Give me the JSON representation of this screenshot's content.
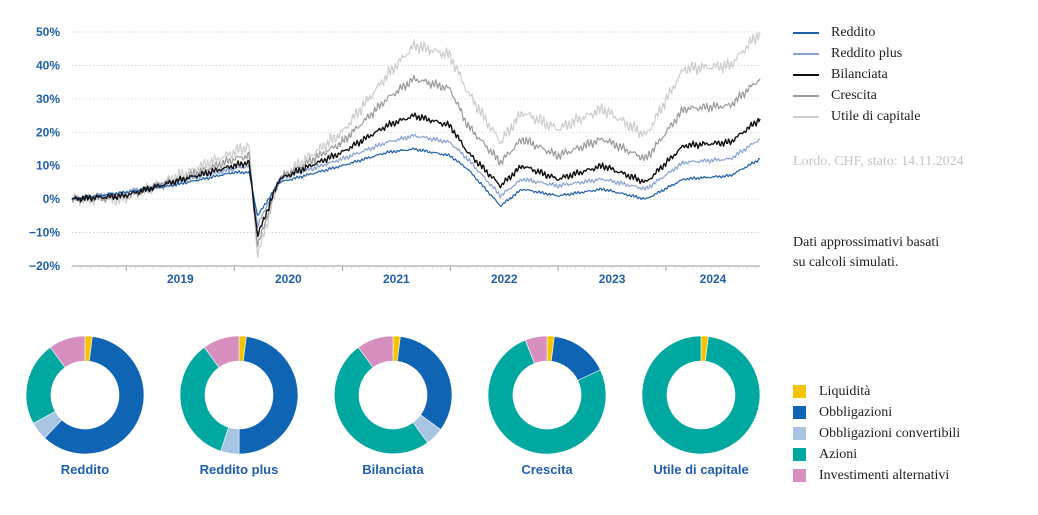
{
  "chart_data": [
    {
      "type": "line",
      "title": "",
      "xlabel": "",
      "ylabel": "",
      "ylim": [
        -20,
        50
      ],
      "yticks": [
        "50%",
        "40%",
        "30%",
        "20%",
        "10%",
        "0%",
        "−10%",
        "−20%"
      ],
      "ytick_values": [
        50,
        40,
        30,
        20,
        10,
        0,
        -10,
        -20
      ],
      "x_start": "2018-07-01",
      "x_end": "2024-11-14",
      "xticks": [
        "2019",
        "2020",
        "2021",
        "2022",
        "2023",
        "2024"
      ],
      "grid": true,
      "legend_position": "right",
      "series": [
        {
          "name": "Reddito",
          "color": "#1f5fa8",
          "points": [
            [
              "2018-07-01",
              0
            ],
            [
              "2018-12-24",
              2
            ],
            [
              "2019-06-01",
              4
            ],
            [
              "2019-12-31",
              8
            ],
            [
              "2020-02-20",
              8
            ],
            [
              "2020-03-20",
              -5
            ],
            [
              "2020-06-01",
              5
            ],
            [
              "2020-12-31",
              10
            ],
            [
              "2021-06-01",
              14
            ],
            [
              "2021-09-01",
              15
            ],
            [
              "2021-12-31",
              13
            ],
            [
              "2022-03-01",
              9
            ],
            [
              "2022-06-20",
              -2
            ],
            [
              "2022-09-01",
              3
            ],
            [
              "2022-12-31",
              1
            ],
            [
              "2023-06-01",
              3
            ],
            [
              "2023-10-25",
              0
            ],
            [
              "2024-03-01",
              6
            ],
            [
              "2024-08-05",
              7
            ],
            [
              "2024-11-14",
              12
            ]
          ]
        },
        {
          "name": "Reddito plus",
          "color": "#8aa2d2",
          "points": [
            [
              "2018-07-01",
              0
            ],
            [
              "2018-12-24",
              2
            ],
            [
              "2019-06-01",
              5
            ],
            [
              "2019-12-31",
              9
            ],
            [
              "2020-02-20",
              10
            ],
            [
              "2020-03-20",
              -8
            ],
            [
              "2020-06-01",
              6
            ],
            [
              "2020-12-31",
              12
            ],
            [
              "2021-06-01",
              17
            ],
            [
              "2021-09-01",
              19
            ],
            [
              "2021-12-31",
              17
            ],
            [
              "2022-03-01",
              12
            ],
            [
              "2022-06-20",
              1
            ],
            [
              "2022-09-01",
              6
            ],
            [
              "2022-12-31",
              4
            ],
            [
              "2023-06-01",
              6
            ],
            [
              "2023-10-25",
              3
            ],
            [
              "2024-03-01",
              11
            ],
            [
              "2024-08-05",
              12
            ],
            [
              "2024-11-14",
              18
            ]
          ]
        },
        {
          "name": "Bilanciata",
          "color": "#111111",
          "points": [
            [
              "2018-07-01",
              0
            ],
            [
              "2018-12-24",
              1
            ],
            [
              "2019-06-01",
              5
            ],
            [
              "2019-12-31",
              10
            ],
            [
              "2020-02-20",
              11
            ],
            [
              "2020-03-20",
              -11
            ],
            [
              "2020-06-01",
              6
            ],
            [
              "2020-12-31",
              14
            ],
            [
              "2021-06-01",
              22
            ],
            [
              "2021-09-01",
              25
            ],
            [
              "2021-12-31",
              22
            ],
            [
              "2022-03-01",
              14
            ],
            [
              "2022-06-20",
              4
            ],
            [
              "2022-09-01",
              10
            ],
            [
              "2022-12-31",
              6
            ],
            [
              "2023-06-01",
              10
            ],
            [
              "2023-10-25",
              5
            ],
            [
              "2024-03-01",
              16
            ],
            [
              "2024-08-05",
              17
            ],
            [
              "2024-11-14",
              24
            ]
          ]
        },
        {
          "name": "Crescita",
          "color": "#9a9a9a",
          "points": [
            [
              "2018-07-01",
              0
            ],
            [
              "2018-12-24",
              1
            ],
            [
              "2019-06-01",
              5
            ],
            [
              "2019-12-31",
              12
            ],
            [
              "2020-02-20",
              13
            ],
            [
              "2020-03-20",
              -14
            ],
            [
              "2020-06-01",
              6
            ],
            [
              "2020-12-31",
              17
            ],
            [
              "2021-06-01",
              30
            ],
            [
              "2021-09-01",
              36
            ],
            [
              "2021-12-31",
              33
            ],
            [
              "2022-03-01",
              22
            ],
            [
              "2022-06-20",
              11
            ],
            [
              "2022-09-01",
              18
            ],
            [
              "2022-12-31",
              13
            ],
            [
              "2023-06-01",
              18
            ],
            [
              "2023-10-25",
              12
            ],
            [
              "2024-03-01",
              27
            ],
            [
              "2024-08-05",
              28
            ],
            [
              "2024-11-14",
              36
            ]
          ]
        },
        {
          "name": "Utile di capitale",
          "color": "#cdcdcd",
          "points": [
            [
              "2018-07-01",
              0
            ],
            [
              "2018-12-24",
              0
            ],
            [
              "2019-06-01",
              6
            ],
            [
              "2019-12-31",
              14
            ],
            [
              "2020-02-20",
              16
            ],
            [
              "2020-03-20",
              -17
            ],
            [
              "2020-06-01",
              6
            ],
            [
              "2020-12-31",
              20
            ],
            [
              "2021-06-01",
              37
            ],
            [
              "2021-09-01",
              46
            ],
            [
              "2021-12-31",
              43
            ],
            [
              "2022-03-01",
              32
            ],
            [
              "2022-06-20",
              17
            ],
            [
              "2022-09-01",
              26
            ],
            [
              "2022-12-31",
              21
            ],
            [
              "2023-06-01",
              27
            ],
            [
              "2023-10-25",
              19
            ],
            [
              "2024-03-01",
              39
            ],
            [
              "2024-08-05",
              40
            ],
            [
              "2024-11-14",
              50
            ]
          ]
        }
      ]
    },
    {
      "type": "pie",
      "subtype": "donut",
      "categories": [
        "Liquidità",
        "Obbligazioni",
        "Obbligazioni convertibili",
        "Azioni",
        "Investimenti alternativi"
      ],
      "colors": [
        "#f5c300",
        "#0f64b4",
        "#a7c4e2",
        "#00a8a0",
        "#d78fbf"
      ],
      "charts": [
        {
          "name": "Reddito",
          "values": [
            2,
            60,
            5,
            23,
            10
          ]
        },
        {
          "name": "Reddito plus",
          "values": [
            2,
            48,
            5,
            35,
            10
          ]
        },
        {
          "name": "Bilanciata",
          "values": [
            2,
            33,
            5,
            50,
            10
          ]
        },
        {
          "name": "Crescita",
          "values": [
            2,
            16,
            0,
            76,
            6
          ]
        },
        {
          "name": "Utile di capitale",
          "values": [
            2,
            0,
            0,
            98,
            0
          ]
        }
      ]
    }
  ],
  "notes": {
    "source": "Lordo, CHF, stato: 14.11.2024",
    "disclaimer_line1": "Dati approssimativi basati",
    "disclaimer_line2": "su calcoli simulati."
  }
}
